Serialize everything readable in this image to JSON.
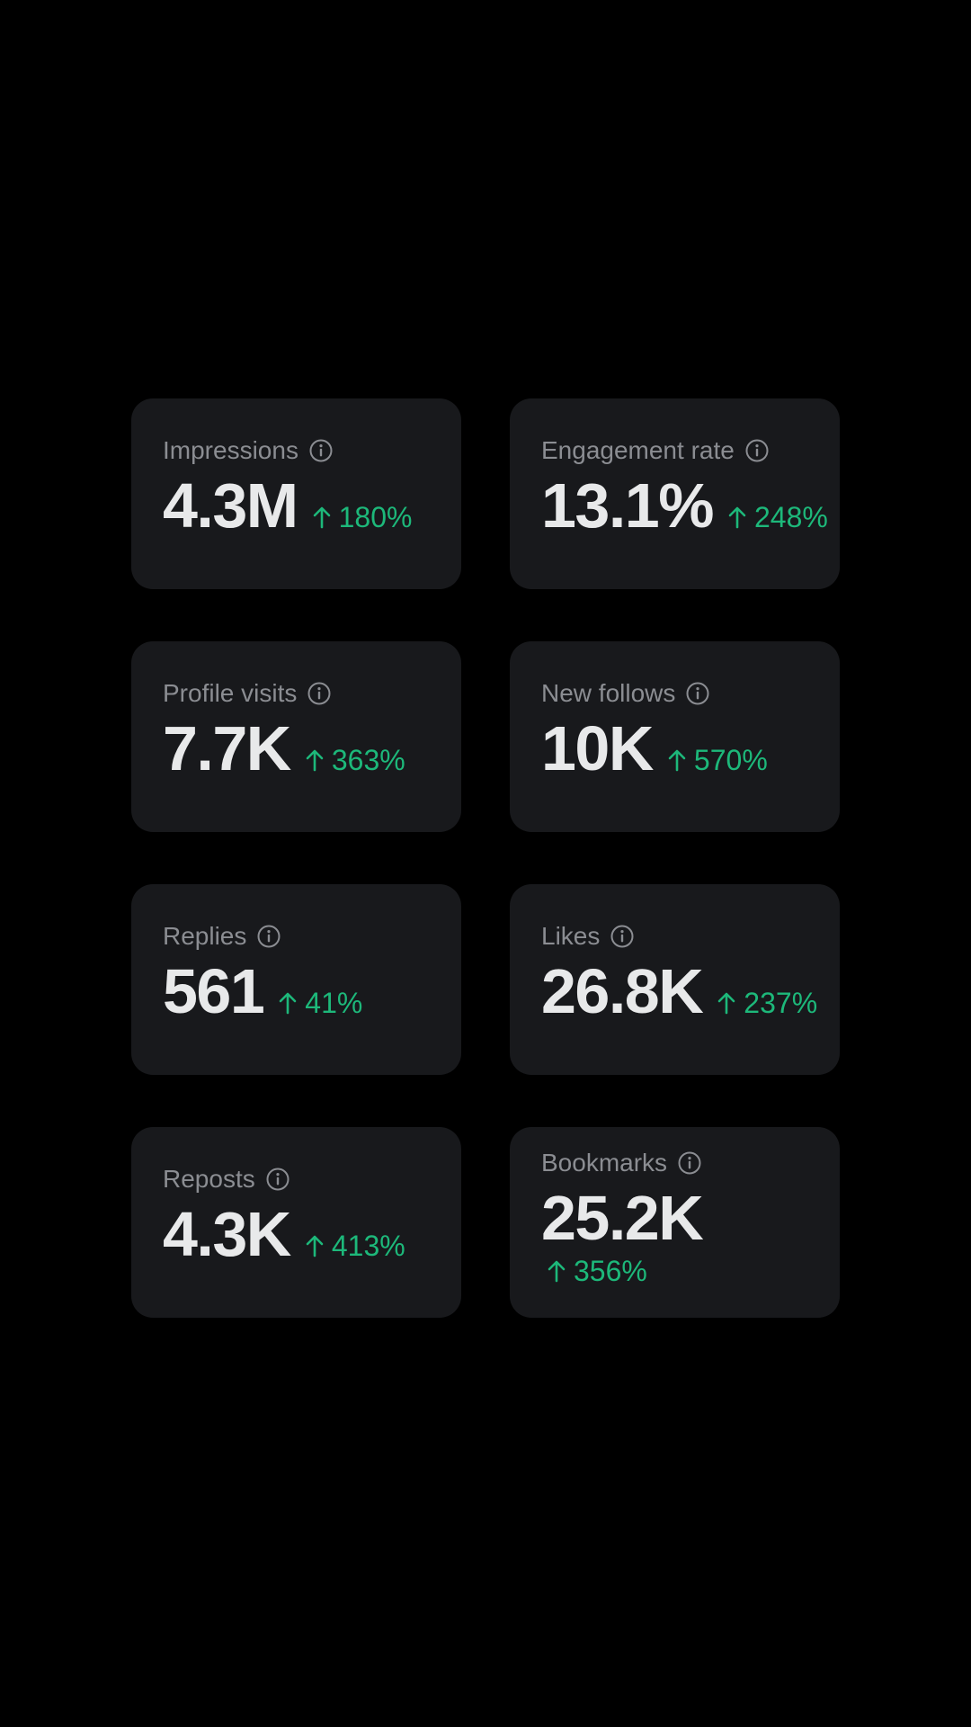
{
  "metrics": [
    {
      "label": "Impressions",
      "value": "4.3M",
      "change": "180%"
    },
    {
      "label": "Engagement rate",
      "value": "13.1%",
      "change": "248%"
    },
    {
      "label": "Profile visits",
      "value": "7.7K",
      "change": "363%"
    },
    {
      "label": "New follows",
      "value": "10K",
      "change": "570%"
    },
    {
      "label": "Replies",
      "value": "561",
      "change": "41%"
    },
    {
      "label": "Likes",
      "value": "26.8K",
      "change": "237%"
    },
    {
      "label": "Reposts",
      "value": "4.3K",
      "change": "413%"
    },
    {
      "label": "Bookmarks",
      "value": "25.2K",
      "change": "356%"
    }
  ],
  "colors": {
    "background": "#000000",
    "card": "#18191c",
    "label": "#8b8d92",
    "value": "#e8e9ea",
    "positive": "#1db87a"
  },
  "icons": {
    "info": "info-circle-icon",
    "trend": "arrow-up-icon"
  }
}
